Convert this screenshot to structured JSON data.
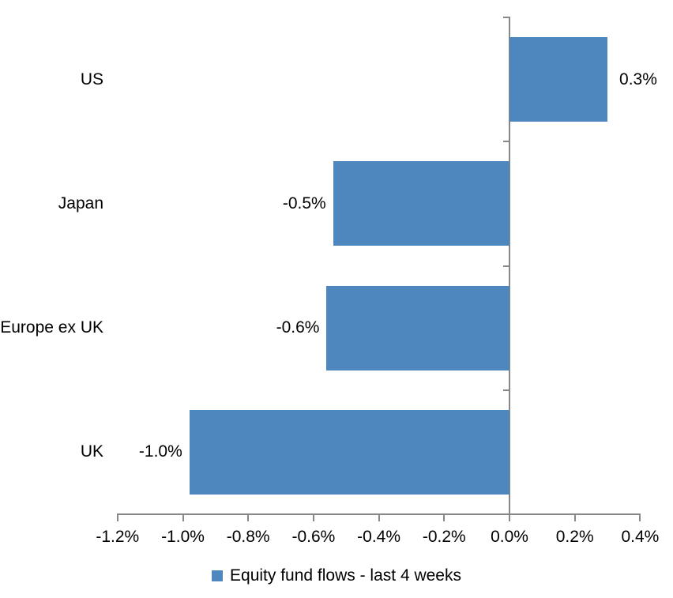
{
  "chart_data": {
    "type": "bar",
    "orientation": "horizontal",
    "title": "",
    "xlabel": "",
    "ylabel": "",
    "categories": [
      "US",
      "Japan",
      "Europe ex UK",
      "UK"
    ],
    "values": [
      0.3,
      -0.54,
      -0.56,
      -0.98
    ],
    "data_labels": [
      "0.3%",
      "-0.5%",
      "-0.6%",
      "-1.0%"
    ],
    "series_name": "Equity fund flows - last 4 weeks",
    "x_ticks": [
      "-1.2%",
      "-1.0%",
      "-0.8%",
      "-0.6%",
      "-0.4%",
      "-0.2%",
      "0.0%",
      "0.2%",
      "0.4%"
    ],
    "x_tick_values": [
      -1.2,
      -1.0,
      -0.8,
      -0.6,
      -0.4,
      -0.2,
      0.0,
      0.2,
      0.4
    ],
    "xlim": [
      -1.2,
      0.4
    ],
    "grid": false,
    "legend_position": "bottom",
    "bar_color": "#4E87BE",
    "axis_color": "#878787",
    "text_color": "#000000"
  },
  "legend": {
    "label": "Equity fund flows - last 4 weeks"
  }
}
